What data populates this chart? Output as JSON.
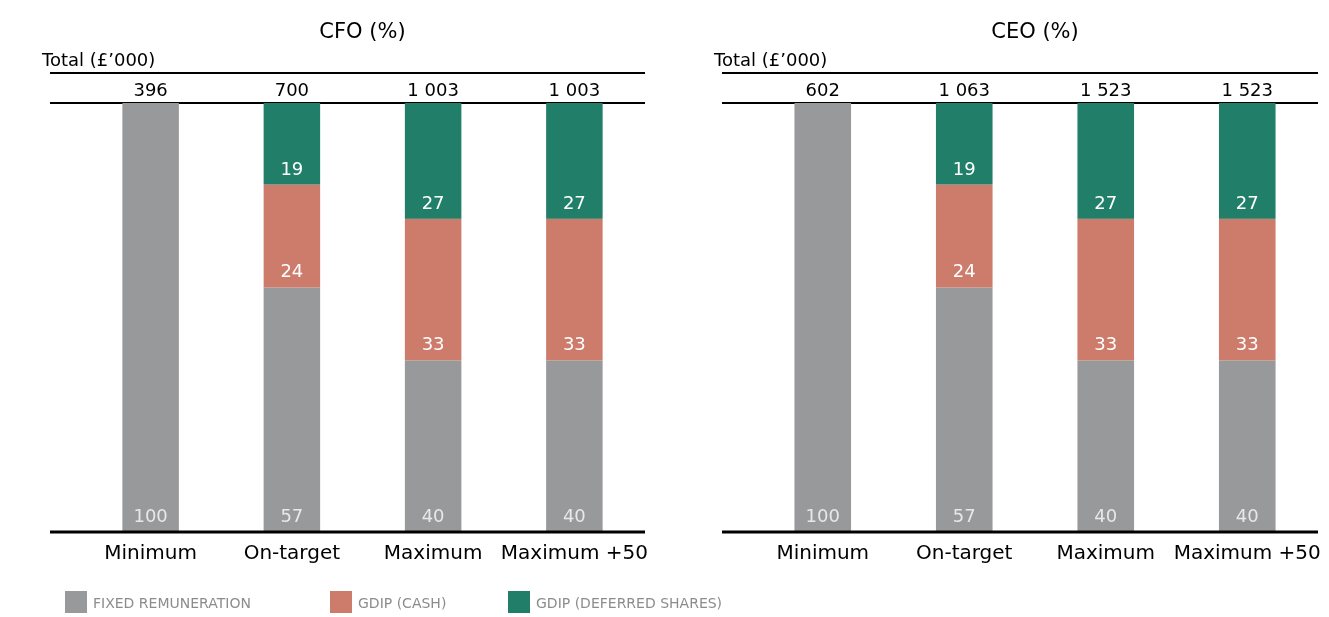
{
  "chart_data": [
    {
      "type": "bar",
      "title": "CFO (%)",
      "stacked": true,
      "data_labels": true,
      "legend": "bottom",
      "ylim": [
        0,
        100
      ],
      "categories": [
        "Minimum",
        "On-target",
        "Maximum",
        "Maximum +50"
      ],
      "annotations": [
        "Total (£’000)",
        "396",
        "700",
        "1 003",
        "1 003"
      ],
      "series": [
        {
          "name": "FIXED REMUNERATION",
          "color": "#98999b",
          "values": [
            100,
            57,
            40,
            40
          ]
        },
        {
          "name": "GDIP (CASH)",
          "color": "#cd7b6a",
          "values": [
            null,
            24,
            33,
            33
          ]
        },
        {
          "name": "GDIP (DEFERRED SHARES)",
          "color": "#217f69",
          "values": [
            null,
            19,
            27,
            27
          ]
        }
      ]
    },
    {
      "type": "bar",
      "title": "CEO (%)",
      "stacked": true,
      "data_labels": true,
      "ylim": [
        0,
        100
      ],
      "categories": [
        "Minimum",
        "On-target",
        "Maximum",
        "Maximum +50"
      ],
      "annotations": [
        "Total (£’000)",
        "602",
        "1 063",
        "1 523",
        "1 523"
      ],
      "series": [
        {
          "color": "#98999b",
          "values": [
            100,
            57,
            40,
            40
          ]
        },
        {
          "color": "#cd7b6a",
          "values": [
            null,
            24,
            33,
            33
          ]
        },
        {
          "color": "#217f69",
          "values": [
            null,
            19,
            27,
            27
          ]
        }
      ]
    }
  ]
}
